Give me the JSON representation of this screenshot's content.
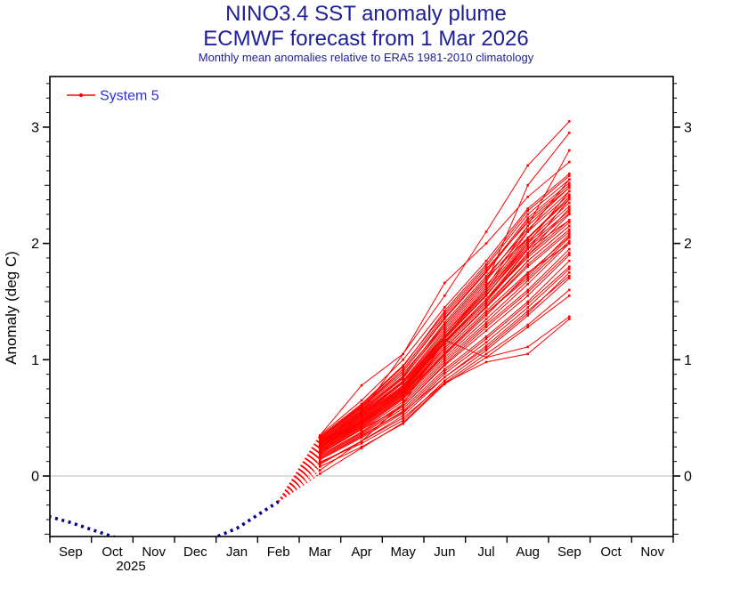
{
  "title": {
    "line1": "NINO3.4 SST anomaly plume",
    "line2": "ECMWF forecast from 1 Mar 2026",
    "line3": "Monthly mean anomalies relative to ERA5 1981-2010 climatology"
  },
  "axes": {
    "y_label": "Anomaly (deg C)",
    "y_tick_labels": [
      "0",
      "1",
      "2",
      "3"
    ],
    "x_year_label": "2025"
  },
  "legend": {
    "label": "System 5",
    "position": "top-left"
  },
  "colors": {
    "title_text": "#1e1e96",
    "legend_text": "#2d2de8",
    "forecast_red": "#ff0000",
    "observed_navy": "#00008b",
    "zero_line_gray": "#b8b8b8",
    "axis_black": "#000000"
  },
  "chart_data": {
    "type": "line",
    "title": "NINO3.4 SST anomaly plume",
    "subtitle": "ECMWF forecast from 1 Mar 2026",
    "note": "Monthly mean anomalies relative to ERA5 1981-2010 climatology",
    "ylabel": "Anomaly (deg C)",
    "ylim": [
      -0.52,
      3.44
    ],
    "yticks": [
      0,
      1,
      2,
      3
    ],
    "y_minor_tick_step": 0.125,
    "grid": "zero-line-only",
    "x_months": [
      "Sep",
      "Oct",
      "Nov",
      "Dec",
      "Jan",
      "Feb",
      "Mar",
      "Apr",
      "May",
      "Jun",
      "Jul",
      "Aug",
      "Sep",
      "Oct",
      "Nov"
    ],
    "x_year_label": {
      "text": "2025",
      "under_month": "Oct"
    },
    "legend": {
      "label": "System 5"
    },
    "observed": {
      "name": "observed-monthly-anomaly",
      "style": "dotted",
      "color": "#00008b",
      "start_month_index": -1,
      "months": [
        "Aug 2025",
        "Sep 2025",
        "Oct 2025",
        "Nov 2025",
        "Dec 2025",
        "Jan 2026",
        "Feb 2026"
      ],
      "values": [
        -0.3,
        -0.4,
        -0.52,
        -0.62,
        -0.6,
        -0.45,
        -0.22
      ]
    },
    "forecast": {
      "name": "System 5 ensemble plume",
      "color": "#ff0000",
      "start_month_index": 6,
      "months": [
        "Mar 2026",
        "Apr 2026",
        "May 2026",
        "Jun 2026",
        "Jul 2026",
        "Aug 2026",
        "Sep 2026"
      ],
      "transition_from_observed": true,
      "members": [
        [
          0.3,
          0.55,
          0.8,
          1.2,
          1.6,
          2.1,
          2.55
        ],
        [
          0.25,
          0.45,
          0.7,
          1.1,
          1.45,
          1.8,
          2.1
        ],
        [
          0.2,
          0.4,
          0.6,
          0.95,
          1.25,
          1.55,
          1.9
        ],
        [
          0.33,
          0.6,
          0.9,
          1.35,
          1.75,
          2.2,
          2.5
        ],
        [
          0.15,
          0.35,
          0.55,
          0.85,
          1.1,
          1.4,
          1.75
        ],
        [
          0.28,
          0.5,
          0.75,
          1.15,
          1.5,
          1.95,
          2.2
        ],
        [
          0.22,
          0.42,
          0.68,
          1.05,
          1.4,
          1.7,
          2.05
        ],
        [
          0.35,
          0.65,
          1.0,
          1.45,
          1.85,
          2.3,
          2.6
        ],
        [
          0.1,
          0.3,
          0.5,
          0.8,
          1.05,
          1.3,
          1.6
        ],
        [
          0.26,
          0.48,
          0.72,
          1.12,
          1.48,
          1.85,
          2.15
        ],
        [
          0.31,
          0.58,
          0.88,
          1.3,
          1.7,
          2.05,
          2.4
        ],
        [
          0.18,
          0.38,
          0.62,
          0.98,
          1.3,
          1.6,
          1.95
        ],
        [
          0.24,
          0.46,
          0.74,
          1.18,
          1.55,
          2.0,
          2.45
        ],
        [
          0.29,
          0.52,
          0.78,
          1.22,
          1.62,
          2.15,
          2.8
        ],
        [
          0.12,
          0.28,
          0.48,
          0.82,
          1.08,
          1.38,
          1.7
        ],
        [
          0.27,
          0.5,
          0.76,
          1.16,
          1.52,
          1.9,
          2.25
        ],
        [
          0.21,
          0.44,
          0.7,
          1.08,
          1.42,
          1.75,
          2.0
        ],
        [
          0.34,
          0.62,
          0.95,
          1.4,
          1.8,
          2.25,
          2.55
        ],
        [
          0.16,
          0.36,
          0.58,
          0.92,
          1.2,
          1.5,
          1.85
        ],
        [
          0.23,
          0.45,
          0.72,
          1.1,
          1.45,
          1.82,
          2.12
        ],
        [
          0.3,
          0.56,
          0.85,
          1.28,
          1.68,
          2.1,
          2.42
        ],
        [
          0.19,
          0.4,
          0.64,
          1.0,
          1.32,
          1.65,
          2.0
        ],
        [
          0.25,
          0.47,
          0.73,
          1.14,
          1.5,
          1.92,
          2.3
        ],
        [
          0.32,
          0.6,
          0.92,
          1.38,
          1.78,
          2.18,
          2.48
        ],
        [
          0.08,
          0.25,
          0.45,
          0.79,
          1.02,
          1.28,
          1.55
        ],
        [
          0.28,
          0.52,
          0.8,
          1.2,
          1.58,
          2.02,
          2.35
        ],
        [
          0.22,
          0.43,
          0.69,
          1.06,
          1.4,
          1.72,
          2.08
        ],
        [
          0.35,
          0.78,
          1.05,
          1.55,
          2.1,
          2.67,
          3.05
        ],
        [
          0.14,
          0.33,
          0.54,
          0.88,
          1.15,
          1.45,
          1.78
        ],
        [
          0.26,
          0.49,
          0.76,
          1.18,
          1.55,
          1.98,
          2.28
        ],
        [
          0.31,
          0.57,
          0.86,
          1.32,
          1.72,
          2.12,
          2.45
        ],
        [
          0.17,
          0.37,
          0.6,
          0.96,
          1.28,
          1.58,
          1.92
        ],
        [
          0.24,
          0.46,
          0.73,
          1.15,
          1.52,
          1.95,
          2.38
        ],
        [
          0.29,
          0.54,
          0.82,
          1.26,
          1.66,
          2.5,
          2.95
        ],
        [
          0.11,
          0.3,
          0.52,
          0.85,
          1.12,
          1.42,
          1.72
        ],
        [
          0.27,
          0.51,
          0.78,
          1.2,
          1.58,
          2.0,
          2.32
        ],
        [
          0.2,
          0.41,
          0.66,
          1.02,
          1.35,
          1.68,
          2.02
        ],
        [
          0.33,
          0.61,
          0.94,
          1.42,
          1.82,
          2.28,
          2.58
        ],
        [
          0.15,
          0.34,
          0.56,
          0.9,
          1.18,
          1.48,
          1.8
        ],
        [
          0.25,
          0.48,
          0.75,
          1.16,
          1.52,
          1.88,
          2.18
        ],
        [
          0.3,
          0.55,
          0.84,
          1.3,
          1.7,
          2.15,
          2.48
        ],
        [
          0.05,
          0.3,
          0.62,
          1.17,
          1.02,
          1.11,
          1.37
        ],
        [
          0.23,
          0.44,
          0.71,
          1.1,
          1.46,
          1.85,
          2.15
        ],
        [
          0.28,
          0.53,
          0.81,
          1.24,
          1.64,
          2.05,
          2.38
        ],
        [
          0.18,
          0.55,
          1.05,
          1.66,
          2.0,
          2.4,
          2.7
        ],
        [
          0.26,
          0.5,
          0.77,
          1.19,
          1.56,
          1.96,
          2.26
        ],
        [
          0.21,
          0.42,
          0.67,
          1.04,
          1.38,
          1.74,
          2.06
        ],
        [
          0.02,
          0.24,
          0.46,
          0.8,
          0.98,
          1.05,
          1.35
        ],
        [
          0.32,
          0.59,
          0.9,
          1.36,
          1.76,
          2.22,
          2.52
        ],
        [
          0.24,
          0.47,
          0.74,
          1.14,
          1.5,
          1.9,
          2.2
        ],
        [
          0.29,
          0.53,
          0.8,
          1.22,
          1.6,
          2.04,
          2.4
        ]
      ]
    }
  }
}
